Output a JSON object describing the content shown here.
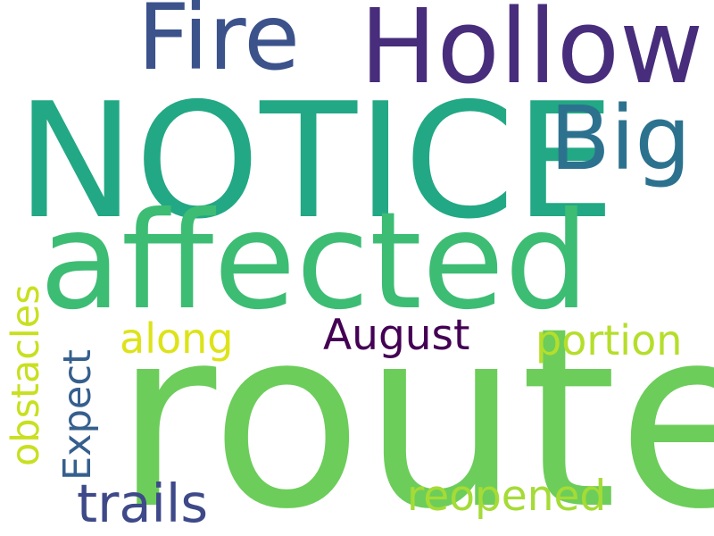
{
  "words": {
    "route": "route",
    "notice": "NOTICE",
    "affected": "affected",
    "hollow": "Hollow",
    "big": "Big",
    "fire": "Fire",
    "august": "August",
    "along": "along",
    "portion": "portion",
    "trails": "trails",
    "reopened": "reopened",
    "obstacles": "obstacles",
    "expect": "Expect"
  },
  "colors": {
    "route": "#6ccd5a",
    "notice": "#22a884",
    "affected": "#3dbc74",
    "hollow": "#472d7b",
    "big": "#2c728e",
    "fire": "#3b528b",
    "august": "#440154",
    "along": "#dde318",
    "portion": "#b5de2b",
    "trails": "#3e4989",
    "reopened": "#a5db36",
    "obstacles": "#c8e020",
    "expect": "#355f8d"
  }
}
